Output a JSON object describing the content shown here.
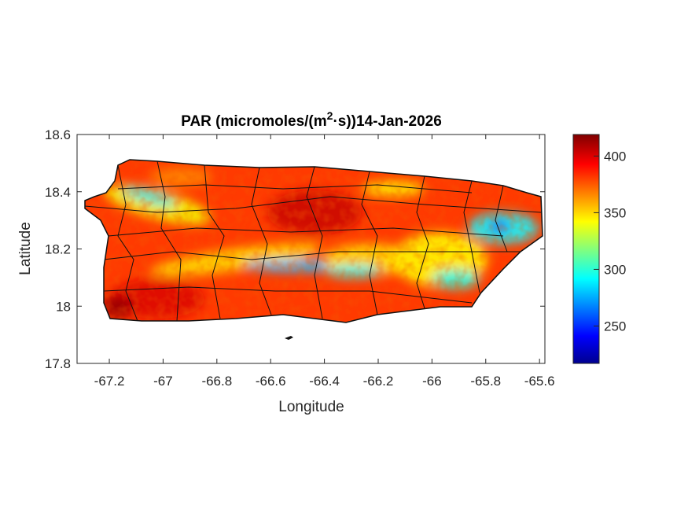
{
  "chart_data": {
    "type": "heatmap",
    "title": "PAR (micromoles/(m²·s))14-Jan-2026",
    "title_parts": {
      "pre": "PAR (micromoles/(m",
      "sup": "2",
      "post": "·s))14-Jan-2026"
    },
    "xlabel": "Longitude",
    "ylabel": "Latitude",
    "xlim": [
      -67.32,
      -65.58
    ],
    "ylim": [
      17.8,
      18.6
    ],
    "xticks": [
      -67.2,
      -67,
      -66.8,
      -66.6,
      -66.4,
      -66.2,
      -66,
      -65.8,
      -65.6
    ],
    "xtick_labels": [
      "-67.2",
      "-67",
      "-66.8",
      "-66.6",
      "-66.4",
      "-66.2",
      "-66",
      "-65.8",
      "-65.6"
    ],
    "yticks": [
      17.8,
      18,
      18.2,
      18.4,
      18.6
    ],
    "ytick_labels": [
      "17.8",
      "18",
      "18.2",
      "18.4",
      "18.6"
    ],
    "colorbar": {
      "colormap": "jet",
      "clim": [
        217,
        419
      ],
      "ticks": [
        250,
        300,
        350,
        400
      ],
      "tick_labels": [
        "250",
        "300",
        "350",
        "400"
      ]
    },
    "region": "Puerto Rico with municipality boundaries",
    "value_summary": {
      "typical": 390,
      "min_approx": 230,
      "max_approx": 419
    }
  }
}
